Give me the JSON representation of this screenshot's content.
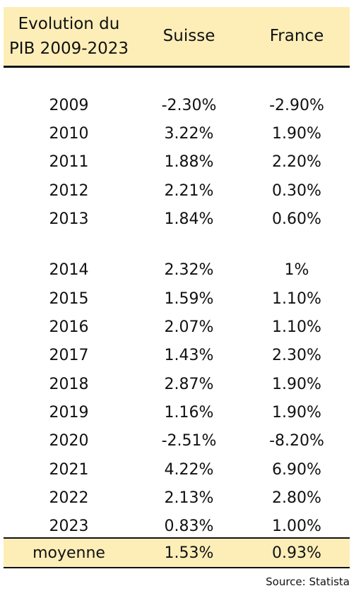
{
  "header": {
    "title_line1": "Evolution du",
    "title_line2": "PIB 2009-2023",
    "col_suisse": "Suisse",
    "col_france": "France"
  },
  "rows": [
    {
      "year": "2009",
      "suisse": "-2.30%",
      "france": "-2.90%"
    },
    {
      "year": "2010",
      "suisse": "3.22%",
      "france": "1.90%"
    },
    {
      "year": "2011",
      "suisse": "1.88%",
      "france": "2.20%"
    },
    {
      "year": "2012",
      "suisse": "2.21%",
      "france": "0.30%"
    },
    {
      "year": "2013",
      "suisse": "1.84%",
      "france": "0.60%"
    },
    {
      "year": "2014",
      "suisse": "2.32%",
      "france": "1%"
    },
    {
      "year": "2015",
      "suisse": "1.59%",
      "france": "1.10%"
    },
    {
      "year": "2016",
      "suisse": "2.07%",
      "france": "1.10%"
    },
    {
      "year": "2017",
      "suisse": "1.43%",
      "france": "2.30%"
    },
    {
      "year": "2018",
      "suisse": "2.87%",
      "france": "1.90%"
    },
    {
      "year": "2019",
      "suisse": "1.16%",
      "france": "1.90%"
    },
    {
      "year": "2020",
      "suisse": "-2.51%",
      "france": "-8.20%"
    },
    {
      "year": "2021",
      "suisse": "4.22%",
      "france": "6.90%"
    },
    {
      "year": "2022",
      "suisse": "2.13%",
      "france": "2.80%"
    },
    {
      "year": "2023",
      "suisse": "0.83%",
      "france": "1.00%"
    }
  ],
  "footer": {
    "label": "moyenne",
    "suisse": "1.53%",
    "france": "0.93%"
  },
  "source": "Source: Statista",
  "colors": {
    "header_bg": "#fdeeb8",
    "rule": "#111111"
  }
}
